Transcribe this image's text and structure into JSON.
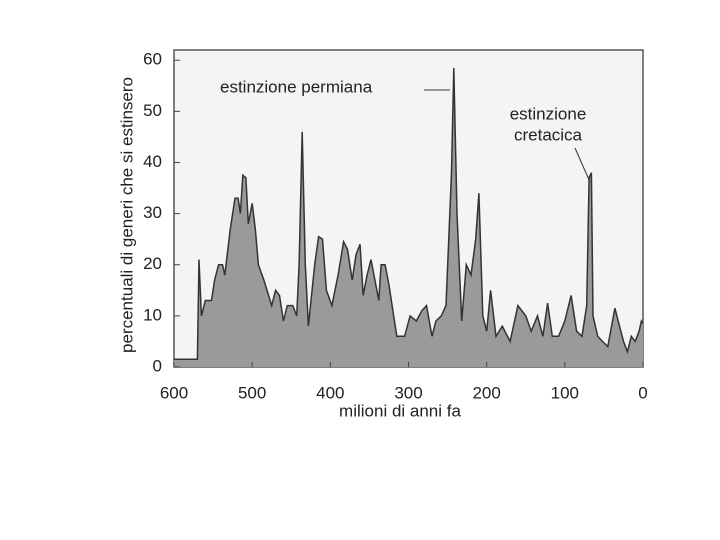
{
  "chart_data": {
    "type": "area",
    "x_label": "milioni di anni fa",
    "y_label": "percentuali di generi che si estinsero",
    "color": "#9a9a9a",
    "line_color": "#333333",
    "xlim": [
      600,
      0
    ],
    "ylim": [
      0,
      62
    ],
    "xticks": [
      600,
      500,
      400,
      300,
      200,
      100,
      0
    ],
    "yticks": [
      0,
      10,
      20,
      30,
      40,
      50,
      60
    ],
    "annotations": [
      {
        "lines": [
          "estinzione permiana"
        ]
      },
      {
        "lines": [
          "estinzione",
          "cretacica"
        ]
      }
    ],
    "x": [
      600,
      570,
      568,
      565,
      560,
      552,
      548,
      543,
      538,
      535,
      528,
      522,
      518,
      515,
      512,
      508,
      505,
      500,
      496,
      492,
      485,
      475,
      470,
      465,
      460,
      455,
      448,
      443,
      440,
      436,
      432,
      428,
      420,
      415,
      410,
      405,
      398,
      390,
      383,
      378,
      372,
      367,
      362,
      358,
      353,
      348,
      343,
      338,
      335,
      330,
      325,
      315,
      305,
      298,
      290,
      283,
      277,
      270,
      265,
      258,
      252,
      245,
      242,
      238,
      232,
      226,
      220,
      214,
      210,
      205,
      200,
      195,
      188,
      180,
      170,
      160,
      150,
      143,
      135,
      128,
      122,
      116,
      108,
      100,
      92,
      85,
      78,
      72,
      69,
      66,
      64,
      58,
      52,
      45,
      36,
      30,
      25,
      20,
      15,
      10,
      5,
      2,
      0
    ],
    "values": [
      1.5,
      1.5,
      21,
      10,
      13,
      13,
      17,
      20,
      20,
      18,
      27,
      33,
      33,
      30,
      37.5,
      37,
      28,
      32,
      27,
      20,
      17,
      12,
      15,
      14,
      9,
      12,
      12,
      10,
      20,
      46,
      20,
      8,
      20,
      25.5,
      25,
      15,
      12,
      18,
      24.5,
      23,
      17,
      22,
      24,
      14,
      18,
      21,
      17,
      13,
      20,
      20,
      16,
      6,
      6,
      10,
      9,
      11,
      12,
      6,
      9,
      10,
      12,
      38,
      58.5,
      30,
      9,
      20,
      18,
      25,
      34,
      10,
      7,
      15,
      6,
      8,
      5,
      12,
      10,
      7,
      10,
      6,
      12.5,
      6,
      6,
      9,
      14,
      7,
      6,
      12,
      37,
      38,
      10,
      6,
      5,
      4,
      11.5,
      8,
      5,
      3,
      6,
      5,
      7,
      9,
      8.5
    ]
  }
}
